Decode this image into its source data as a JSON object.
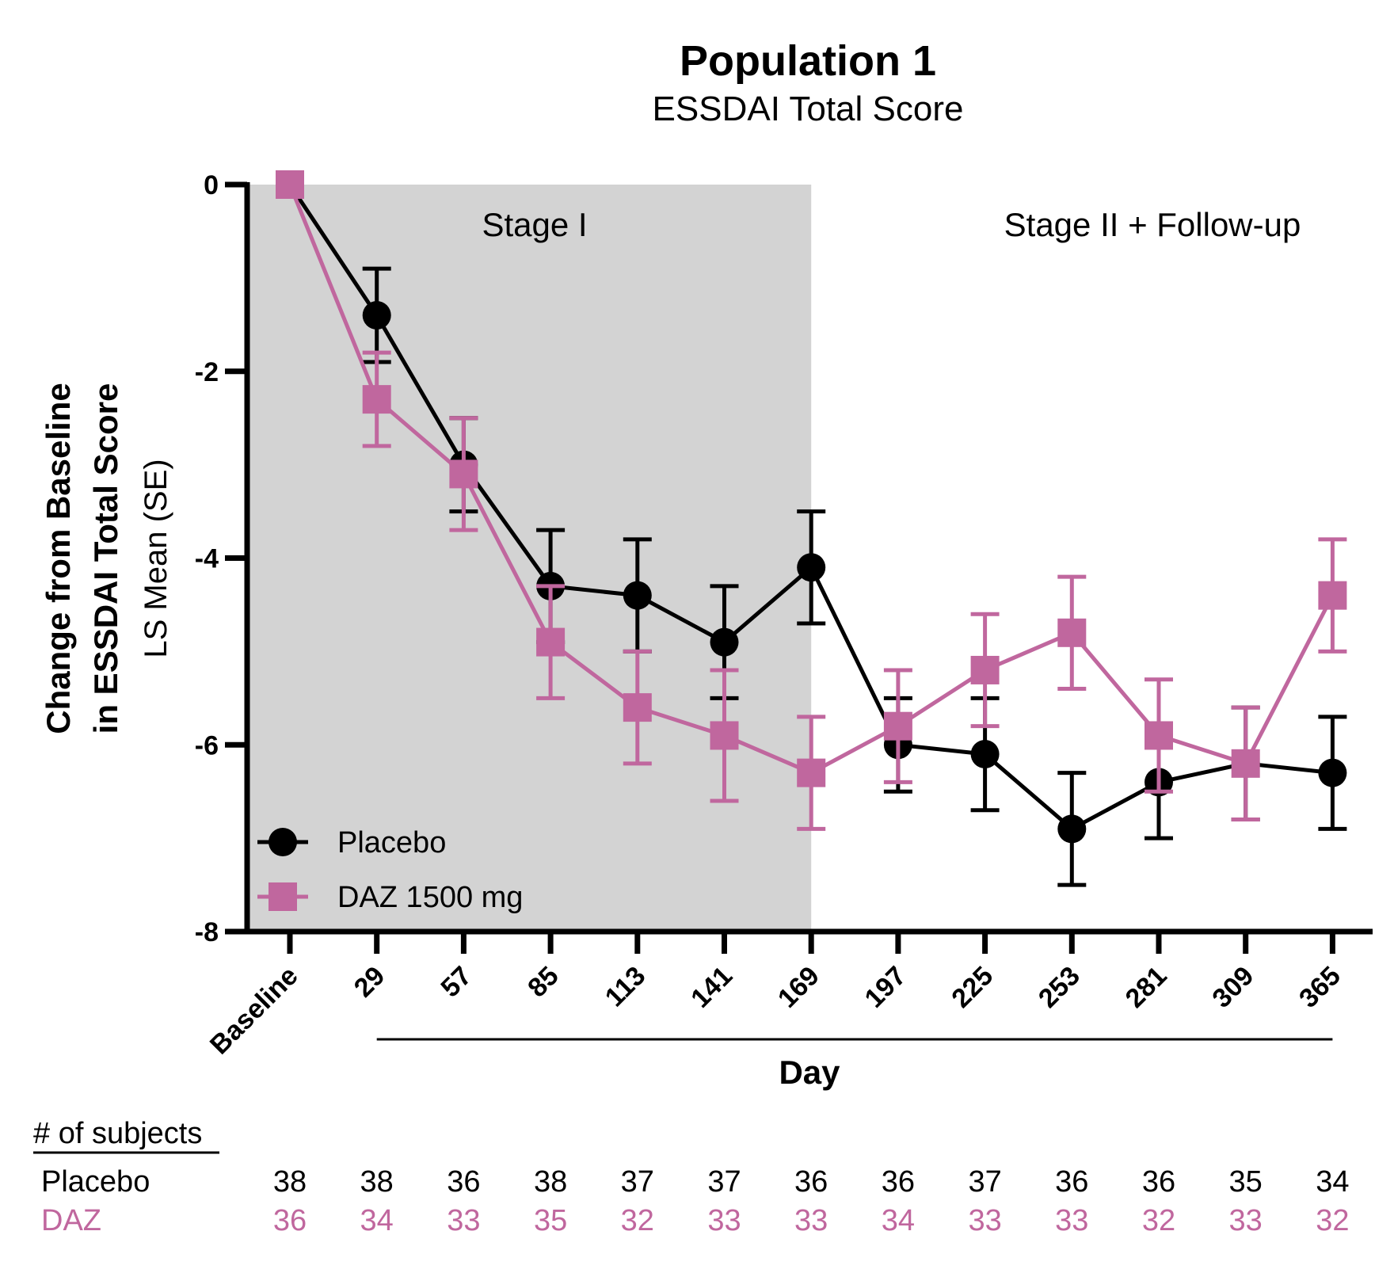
{
  "chart_data": {
    "type": "line",
    "title": "Population 1",
    "subtitle": "ESSDAI Total Score",
    "xlabel": "Day",
    "ylabel_line1": "Change from Baseline",
    "ylabel_line2": "in ESSDAI Total Score",
    "ylabel_line3": "LS Mean (SE)",
    "categories": [
      "Baseline",
      "29",
      "57",
      "85",
      "113",
      "141",
      "169",
      "197",
      "225",
      "253",
      "281",
      "309",
      "365"
    ],
    "ylim": [
      -8,
      0
    ],
    "yticks": [
      0,
      -2,
      -4,
      -6,
      -8
    ],
    "ytick_labels": [
      "0",
      "-2",
      "-4",
      "-6",
      "-8"
    ],
    "grid": false,
    "legend_position": "bottom-left",
    "shaded_region": {
      "label": "Stage I",
      "from_category": "Baseline",
      "to_category": "169",
      "color": "#D3D3D3"
    },
    "annotations": [
      "Stage I",
      "Stage II + Follow-up"
    ],
    "series": [
      {
        "name": "Placebo",
        "marker": "circle",
        "color": "#000000",
        "values": [
          0,
          -1.4,
          -3.0,
          -4.3,
          -4.4,
          -4.9,
          -4.1,
          -6.0,
          -6.1,
          -6.9,
          -6.4,
          -6.2,
          -6.3
        ],
        "err_upper": [
          0,
          -0.9,
          -2.5,
          -3.7,
          -3.8,
          -4.3,
          -3.5,
          -5.5,
          -5.5,
          -6.3,
          -5.8,
          -5.6,
          -5.7
        ],
        "err_lower": [
          0,
          -1.9,
          -3.5,
          -4.9,
          -5.0,
          -5.5,
          -4.7,
          -6.5,
          -6.7,
          -7.5,
          -7.0,
          -6.8,
          -6.9
        ]
      },
      {
        "name": "DAZ 1500 mg",
        "marker": "square",
        "color": "#C0679E",
        "values": [
          0,
          -2.3,
          -3.1,
          -4.9,
          -5.6,
          -5.9,
          -6.3,
          -5.8,
          -5.2,
          -4.8,
          -5.9,
          -6.2,
          -4.4
        ],
        "err_upper": [
          0,
          -1.8,
          -2.5,
          -4.3,
          -5.0,
          -5.2,
          -5.7,
          -5.2,
          -4.6,
          -4.2,
          -5.3,
          -5.6,
          -3.8
        ],
        "err_lower": [
          0,
          -2.8,
          -3.7,
          -5.5,
          -6.2,
          -6.6,
          -6.9,
          -6.4,
          -5.8,
          -5.4,
          -6.5,
          -6.8,
          -5.0
        ]
      }
    ]
  },
  "subjects_table": {
    "header": "# of subjects",
    "rows": [
      {
        "label": "Placebo",
        "color": "#000000",
        "values": [
          "38",
          "38",
          "36",
          "38",
          "37",
          "37",
          "36",
          "36",
          "37",
          "36",
          "36",
          "35",
          "34"
        ]
      },
      {
        "label": "DAZ",
        "color": "#C0679E",
        "values": [
          "36",
          "34",
          "33",
          "35",
          "32",
          "33",
          "33",
          "34",
          "33",
          "33",
          "32",
          "33",
          "32"
        ]
      }
    ]
  }
}
